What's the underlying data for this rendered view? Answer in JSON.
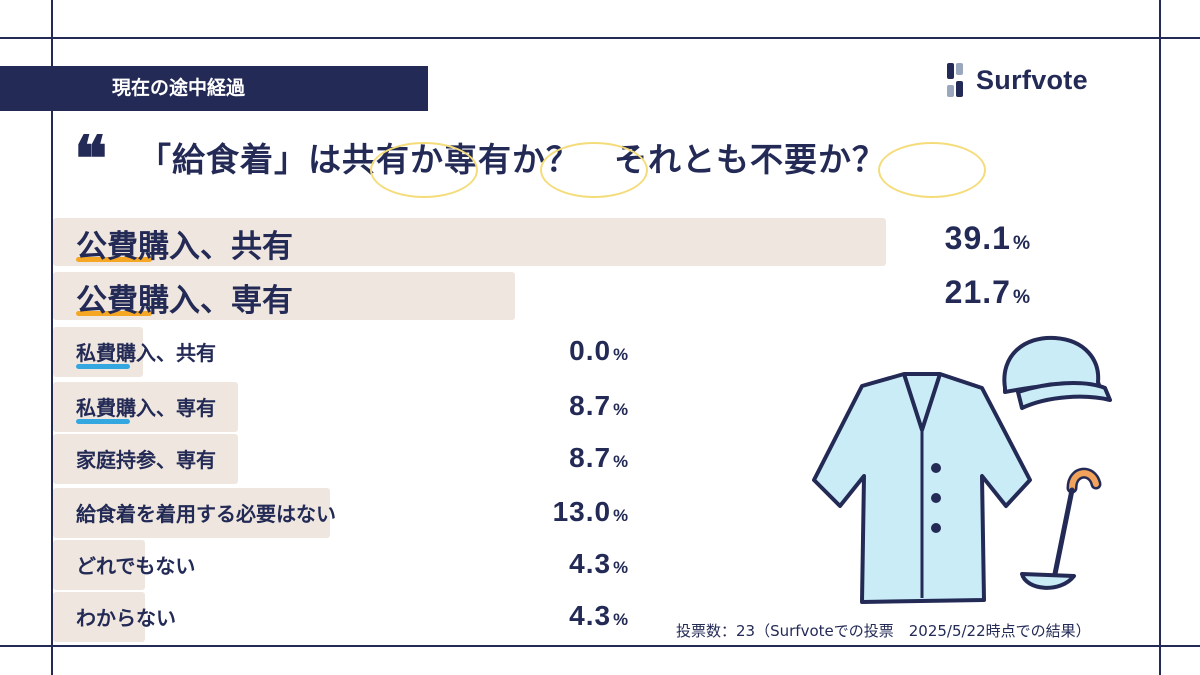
{
  "header": {
    "status_banner": "現在の途中経過"
  },
  "brand": {
    "name": "Surfvote"
  },
  "question": {
    "quote_glyph": "❝",
    "text": "「給食着」は共有か専有か？　それとも不要か？"
  },
  "chart_data": {
    "type": "bar",
    "orientation": "horizontal",
    "unit": "%",
    "categories": [
      "公費購入、共有",
      "公費購入、専有",
      "私費購入、共有",
      "私費購入、専有",
      "家庭持参、専有",
      "給食着を着用する必要はない",
      "どれでもない",
      "わからない"
    ],
    "values": [
      39.1,
      21.7,
      0.0,
      8.7,
      8.7,
      13.0,
      4.3,
      4.3
    ],
    "value_labels": [
      "39.1",
      "21.7",
      "0.0",
      "8.7",
      "8.7",
      "13.0",
      "4.3",
      "4.3"
    ]
  },
  "footnote": "投票数：23（Surfvoteでの投票　2025/5/22時点での結果）",
  "colors": {
    "navy": "#232a55",
    "bar": "#efe7df",
    "underline_public": "#f5a623",
    "underline_private": "#35a7e0",
    "coat": "#c9ecf6",
    "handle": "#f2a35b"
  },
  "illustration": {
    "icons": [
      "cook-coat-icon",
      "cook-hat-icon",
      "ladle-icon"
    ]
  }
}
